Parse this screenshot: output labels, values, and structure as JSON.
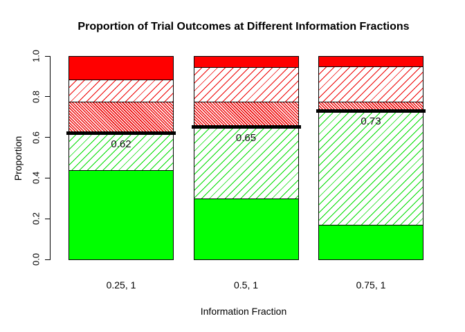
{
  "chart_data": {
    "type": "bar",
    "stacked": true,
    "title": "Proportion of Trial Outcomes at Different Information Fractions",
    "xlabel": "Information Fraction",
    "ylabel": "Proportion",
    "categories": [
      "0.25, 1",
      "0.5, 1",
      "0.75, 1"
    ],
    "series": [
      {
        "name": "solid-green-bottom-segment",
        "fill": {
          "style": "solid",
          "color": "#00ff00"
        },
        "values": [
          0.44,
          0.3,
          0.17
        ]
      },
      {
        "name": "green-diagonal-hatch-segment",
        "fill": {
          "style": "hatch",
          "color": "#00dd00",
          "angle": "135deg",
          "period": 8,
          "line": 1
        },
        "values": [
          0.18,
          0.35,
          0.56
        ]
      },
      {
        "name": "red-dense-hatch-segment",
        "fill": {
          "style": "hatch",
          "color": "#ee0000",
          "angle": "45deg",
          "period": 3,
          "line": 1.5
        },
        "values": [
          0.155,
          0.125,
          0.045
        ]
      },
      {
        "name": "red-light-hatch-segment",
        "fill": {
          "style": "hatch",
          "color": "#ee0000",
          "angle": "135deg",
          "period": 8,
          "line": 1
        },
        "values": [
          0.11,
          0.17,
          0.175
        ]
      },
      {
        "name": "solid-red-top-segment",
        "fill": {
          "style": "solid",
          "color": "#ff0000"
        },
        "values": [
          0.115,
          0.055,
          0.05
        ]
      }
    ],
    "overlay_lines": {
      "name": "cumulative-threshold-line",
      "values": [
        0.62,
        0.65,
        0.73
      ],
      "labels": [
        "0.62",
        "0.65",
        "0.73"
      ],
      "color": "#000000",
      "thickness": 5
    },
    "yticks": {
      "values": [
        0,
        0.2,
        0.4,
        0.6,
        0.8,
        1.0
      ],
      "labels": [
        "0.0",
        "0.2",
        "0.4",
        "0.6",
        "0.8",
        "1.0"
      ]
    },
    "ylim": [
      0,
      1
    ],
    "grid": false,
    "legend": "none",
    "axis_color": "#000000",
    "background": "#ffffff"
  }
}
